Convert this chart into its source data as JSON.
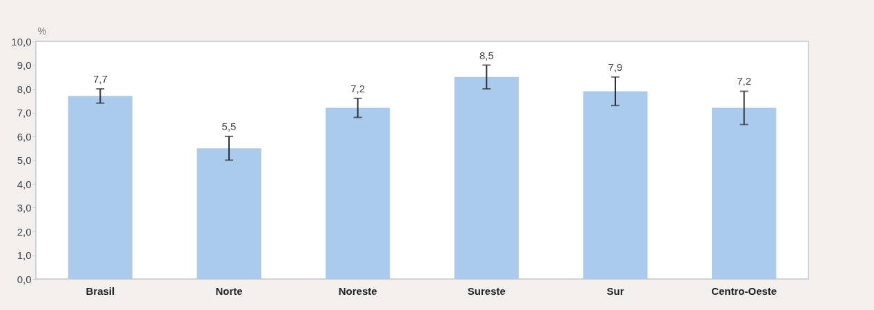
{
  "chart_data": {
    "type": "bar",
    "ylabel": "%",
    "categories": [
      "Brasil",
      "Norte",
      "Noreste",
      "Sureste",
      "Sur",
      "Centro-Oeste"
    ],
    "values": [
      7.7,
      5.5,
      7.2,
      8.5,
      7.9,
      7.2
    ],
    "color": "#aacbeb",
    "errors": [
      [
        7.4,
        8.0
      ],
      [
        5.0,
        6.0
      ],
      [
        6.8,
        7.6
      ],
      [
        8.0,
        9.0
      ],
      [
        7.3,
        8.5
      ],
      [
        6.5,
        7.9
      ]
    ],
    "value_labels": [
      "7,7",
      "5,5",
      "7,2",
      "8,5",
      "7,9",
      "7,2"
    ],
    "ylim": [
      0,
      10
    ],
    "yticks": [
      {
        "value": 0,
        "label": "0,0"
      },
      {
        "value": 1,
        "label": "1,0"
      },
      {
        "value": 2,
        "label": "2,0"
      },
      {
        "value": 3,
        "label": "3,0"
      },
      {
        "value": 4,
        "label": "4,0"
      },
      {
        "value": 5,
        "label": "5,0"
      },
      {
        "value": 6,
        "label": "6,0"
      },
      {
        "value": 7,
        "label": "7,0"
      },
      {
        "value": 8,
        "label": "8,0"
      },
      {
        "value": 9,
        "label": "9,0"
      },
      {
        "value": 10,
        "label": "10,0"
      }
    ],
    "grid": false
  }
}
